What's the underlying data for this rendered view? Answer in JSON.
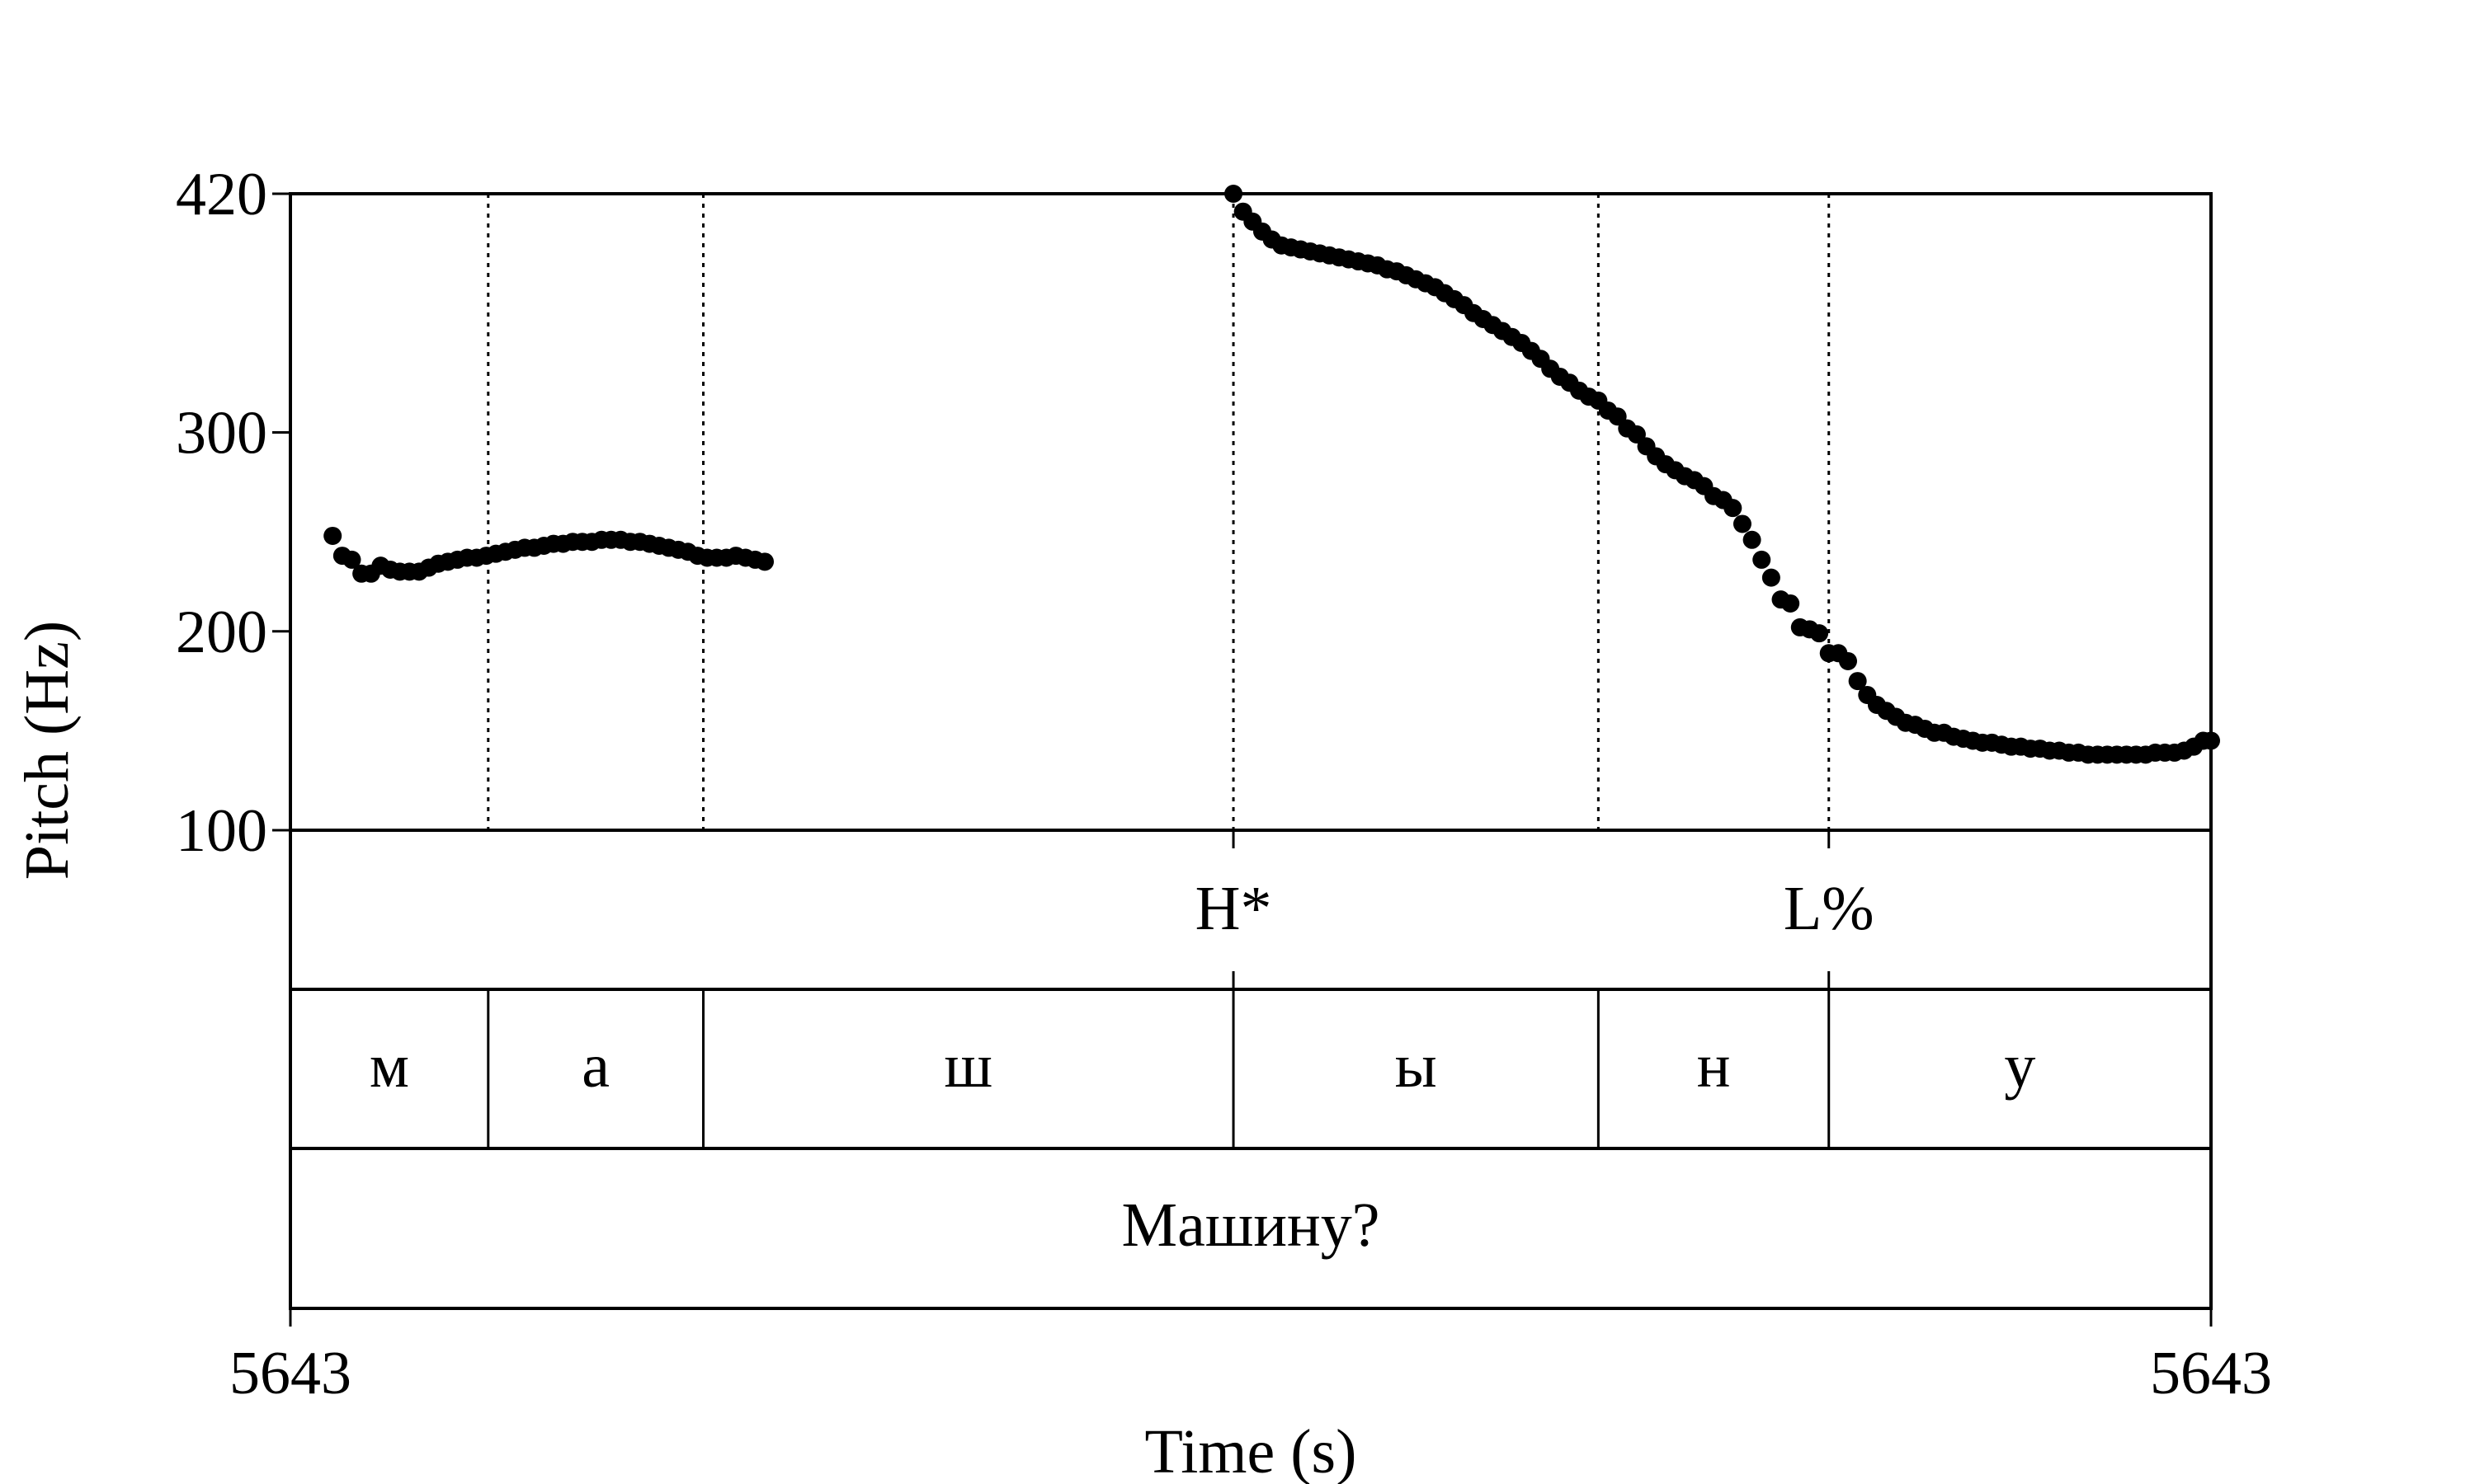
{
  "chart_data": {
    "type": "scatter",
    "title": "",
    "xlabel": "Time (s)",
    "ylabel": "Pitch (Hz)",
    "x_tick_labels": [
      "5643",
      "5643"
    ],
    "y_ticks": [
      100,
      200,
      300,
      420
    ],
    "ylim": [
      100,
      420
    ],
    "xlim": [
      0,
      1
    ],
    "grid": false,
    "boundaries": [
      0.103,
      0.215,
      0.491,
      0.681,
      0.801
    ],
    "tones": [
      {
        "label": "H*",
        "x": 0.491
      },
      {
        "label": "L%",
        "x": 0.801
      }
    ],
    "segments": [
      {
        "label": "м",
        "start": 0.0,
        "end": 0.103
      },
      {
        "label": "а",
        "start": 0.103,
        "end": 0.215
      },
      {
        "label": "ш",
        "start": 0.215,
        "end": 0.491
      },
      {
        "label": "ы",
        "start": 0.491,
        "end": 0.681
      },
      {
        "label": "н",
        "start": 0.681,
        "end": 0.801
      },
      {
        "label": "у",
        "start": 0.801,
        "end": 1.0
      }
    ],
    "words": [
      {
        "label": "Машину?",
        "start": 0.0,
        "end": 1.0
      }
    ],
    "series": [
      {
        "points": [
          [
            0.022,
            248
          ],
          [
            0.027,
            238
          ],
          [
            0.032,
            236
          ],
          [
            0.037,
            229
          ],
          [
            0.042,
            229
          ],
          [
            0.047,
            233
          ],
          [
            0.052,
            231
          ],
          [
            0.057,
            230
          ],
          [
            0.062,
            230
          ],
          [
            0.067,
            230
          ],
          [
            0.072,
            232
          ],
          [
            0.077,
            234
          ],
          [
            0.082,
            235
          ],
          [
            0.087,
            236
          ],
          [
            0.092,
            237
          ],
          [
            0.097,
            237
          ],
          [
            0.102,
            238
          ],
          [
            0.107,
            239
          ],
          [
            0.112,
            240
          ],
          [
            0.117,
            241
          ],
          [
            0.122,
            242
          ],
          [
            0.127,
            242
          ],
          [
            0.132,
            243
          ],
          [
            0.137,
            244
          ],
          [
            0.142,
            244
          ],
          [
            0.147,
            245
          ],
          [
            0.152,
            245
          ],
          [
            0.157,
            245
          ],
          [
            0.162,
            246
          ],
          [
            0.167,
            246
          ],
          [
            0.172,
            246
          ],
          [
            0.177,
            245
          ],
          [
            0.182,
            245
          ],
          [
            0.187,
            244
          ],
          [
            0.192,
            243
          ],
          [
            0.197,
            242
          ],
          [
            0.202,
            241
          ],
          [
            0.207,
            240
          ],
          [
            0.212,
            238
          ],
          [
            0.217,
            237
          ],
          [
            0.222,
            237
          ],
          [
            0.227,
            237
          ],
          [
            0.232,
            238
          ],
          [
            0.237,
            237
          ],
          [
            0.242,
            236
          ],
          [
            0.247,
            235
          ],
          [
            0.491,
            420
          ],
          [
            0.496,
            411
          ],
          [
            0.501,
            406
          ],
          [
            0.506,
            401
          ],
          [
            0.511,
            397
          ],
          [
            0.516,
            394
          ],
          [
            0.521,
            393
          ],
          [
            0.526,
            392
          ],
          [
            0.531,
            391
          ],
          [
            0.536,
            390
          ],
          [
            0.541,
            389
          ],
          [
            0.546,
            388
          ],
          [
            0.551,
            387
          ],
          [
            0.556,
            386
          ],
          [
            0.561,
            385
          ],
          [
            0.566,
            384
          ],
          [
            0.571,
            382
          ],
          [
            0.576,
            381
          ],
          [
            0.581,
            379
          ],
          [
            0.586,
            377
          ],
          [
            0.591,
            375
          ],
          [
            0.596,
            373
          ],
          [
            0.601,
            370
          ],
          [
            0.606,
            367
          ],
          [
            0.611,
            364
          ],
          [
            0.616,
            360
          ],
          [
            0.621,
            357
          ],
          [
            0.626,
            354
          ],
          [
            0.631,
            351
          ],
          [
            0.636,
            348
          ],
          [
            0.641,
            345
          ],
          [
            0.646,
            341
          ],
          [
            0.651,
            337
          ],
          [
            0.656,
            332
          ],
          [
            0.661,
            328
          ],
          [
            0.666,
            325
          ],
          [
            0.671,
            321
          ],
          [
            0.676,
            318
          ],
          [
            0.681,
            316
          ],
          [
            0.686,
            311
          ],
          [
            0.691,
            308
          ],
          [
            0.696,
            302
          ],
          [
            0.701,
            299
          ],
          [
            0.706,
            293
          ],
          [
            0.711,
            288
          ],
          [
            0.716,
            284
          ],
          [
            0.721,
            281
          ],
          [
            0.726,
            278
          ],
          [
            0.731,
            276
          ],
          [
            0.736,
            273
          ],
          [
            0.741,
            268
          ],
          [
            0.746,
            266
          ],
          [
            0.751,
            262
          ],
          [
            0.756,
            254
          ],
          [
            0.761,
            246
          ],
          [
            0.766,
            236
          ],
          [
            0.771,
            227
          ],
          [
            0.776,
            216
          ],
          [
            0.781,
            214
          ],
          [
            0.786,
            202
          ],
          [
            0.791,
            201
          ],
          [
            0.796,
            199
          ],
          [
            0.801,
            189
          ],
          [
            0.806,
            189
          ],
          [
            0.811,
            185
          ],
          [
            0.816,
            175
          ],
          [
            0.821,
            168
          ],
          [
            0.826,
            163
          ],
          [
            0.831,
            160
          ],
          [
            0.836,
            157
          ],
          [
            0.841,
            154
          ],
          [
            0.846,
            153
          ],
          [
            0.851,
            151
          ],
          [
            0.856,
            149
          ],
          [
            0.861,
            149
          ],
          [
            0.866,
            147
          ],
          [
            0.871,
            146
          ],
          [
            0.876,
            145
          ],
          [
            0.881,
            144
          ],
          [
            0.886,
            144
          ],
          [
            0.891,
            143
          ],
          [
            0.896,
            142
          ],
          [
            0.901,
            142
          ],
          [
            0.906,
            141
          ],
          [
            0.911,
            141
          ],
          [
            0.916,
            140
          ],
          [
            0.921,
            140
          ],
          [
            0.926,
            139
          ],
          [
            0.931,
            139
          ],
          [
            0.936,
            138
          ],
          [
            0.941,
            138
          ],
          [
            0.946,
            138
          ],
          [
            0.951,
            138
          ],
          [
            0.956,
            138
          ],
          [
            0.961,
            138
          ],
          [
            0.966,
            138
          ],
          [
            0.971,
            139
          ],
          [
            0.976,
            139
          ],
          [
            0.981,
            139
          ],
          [
            0.986,
            140
          ],
          [
            0.991,
            142
          ],
          [
            0.996,
            145
          ],
          [
            1.0,
            145
          ]
        ]
      }
    ]
  }
}
